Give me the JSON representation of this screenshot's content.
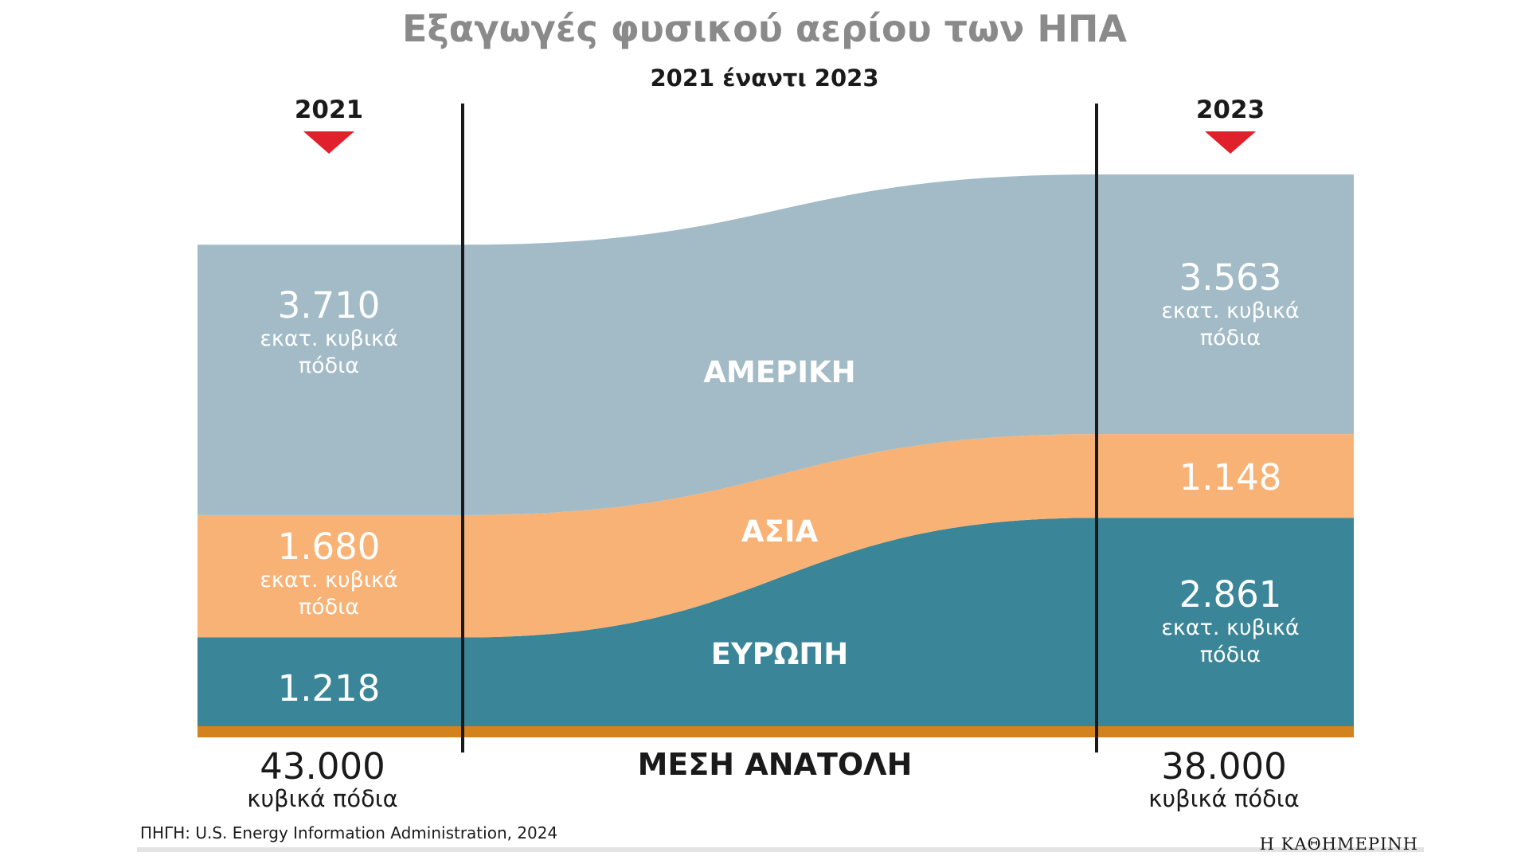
{
  "title": "Εξαγωγές φυσικού αερίου των ΗΠΑ",
  "subtitle": "2021 έναντι 2023",
  "years": [
    "2021",
    "2023"
  ],
  "source": "ΠΗΓΗ: U.S. Energy Information Administration, 2024",
  "brand": "Η ΚΑΘΗΜΕΡΙΝΗ",
  "colors": {
    "americas": "#a2bbc7",
    "asia": "#f9b275",
    "europe": "#3a8597",
    "middle_east": "#d4821e",
    "marker": "#e0202a",
    "title": "#8a8a8a",
    "text": "#1a1a1a"
  },
  "regions": {
    "americas": "ΑΜΕΡΙΚΗ",
    "asia": "ΑΣΙΑ",
    "europe": "ΕΥΡΩΠΗ",
    "middle_east": "ΜΕΣΗ ΑΝΑΤΟΛΗ"
  },
  "labels": {
    "left": {
      "americas": {
        "value": "3.710",
        "unit_line1": "εκατ. κυβικά",
        "unit_line2": "πόδια"
      },
      "asia": {
        "value": "1.680",
        "unit_line1": "εκατ. κυβικά",
        "unit_line2": "πόδια"
      },
      "europe": {
        "value": "1.218"
      },
      "middle_east": {
        "value": "43.000",
        "unit": "κυβικά πόδια"
      }
    },
    "right": {
      "americas": {
        "value": "3.563",
        "unit_line1": "εκατ. κυβικά",
        "unit_line2": "πόδια"
      },
      "asia": {
        "value": "1.148"
      },
      "europe": {
        "value": "2.861",
        "unit_line1": "εκατ. κυβικά",
        "unit_line2": "πόδια"
      },
      "middle_east": {
        "value": "38.000",
        "unit": "κυβικά πόδια"
      }
    }
  },
  "chart_data": {
    "type": "area",
    "title": "Εξαγωγές φυσικού αερίου των ΗΠΑ",
    "subtitle": "2021 έναντι 2023",
    "x": [
      "2021",
      "2023"
    ],
    "unit": "εκατ. κυβικά πόδια",
    "series": [
      {
        "key": "middle_east",
        "name": "ΜΕΣΗ ΑΝΑΤΟΛΗ",
        "values": [
          0.043,
          0.038
        ],
        "unit": "εκατ. κυβικά πόδια"
      },
      {
        "key": "europe",
        "name": "ΕΥΡΩΠΗ",
        "values": [
          1218,
          2861
        ]
      },
      {
        "key": "asia",
        "name": "ΑΣΙΑ",
        "values": [
          1680,
          1148
        ]
      },
      {
        "key": "americas",
        "name": "ΑΜΕΡΙΚΗ",
        "values": [
          3710,
          3563
        ]
      }
    ]
  }
}
